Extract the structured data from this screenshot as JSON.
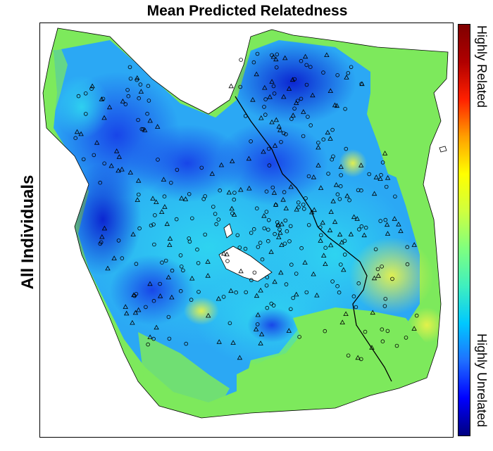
{
  "title": "Mean Predicted Relatedness",
  "row_label": "All Individuals",
  "colorbar": {
    "label_high": "Highly Related",
    "label_low": "Highly Unrelated",
    "colors": [
      "#00007f",
      "#0000ff",
      "#1f6fff",
      "#00c8ff",
      "#3fefbf",
      "#7fff7f",
      "#cfff3f",
      "#ffff00",
      "#ff9f00",
      "#ff2000",
      "#b00000",
      "#7f0000"
    ]
  },
  "map": {
    "land_color": "#79e85a",
    "background": "#ffffff",
    "marker_types": [
      "circle",
      "triangle"
    ]
  }
}
